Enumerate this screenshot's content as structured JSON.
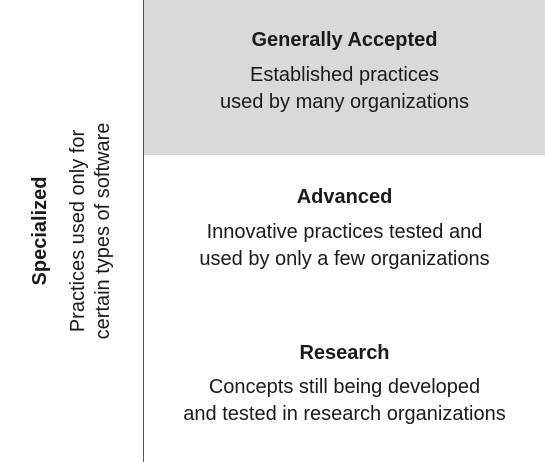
{
  "side": {
    "title": "Specialized",
    "description_lines": [
      "Practices used only for",
      "certain types of software"
    ]
  },
  "bands": [
    {
      "title": "Generally Accepted",
      "description_lines": [
        "Established practices",
        "used by many organizations"
      ],
      "fill": "#d9d9d9"
    },
    {
      "title": "Advanced",
      "description_lines": [
        "Innovative practices tested and",
        "used by only a few organizations"
      ],
      "fill": "#ffffff"
    },
    {
      "title": "Research",
      "description_lines": [
        "Concepts still being developed",
        "and tested in research organizations"
      ],
      "fill": "#ffffff"
    }
  ],
  "colors": {
    "divider": "#555555",
    "text": "#1a1a1a"
  }
}
